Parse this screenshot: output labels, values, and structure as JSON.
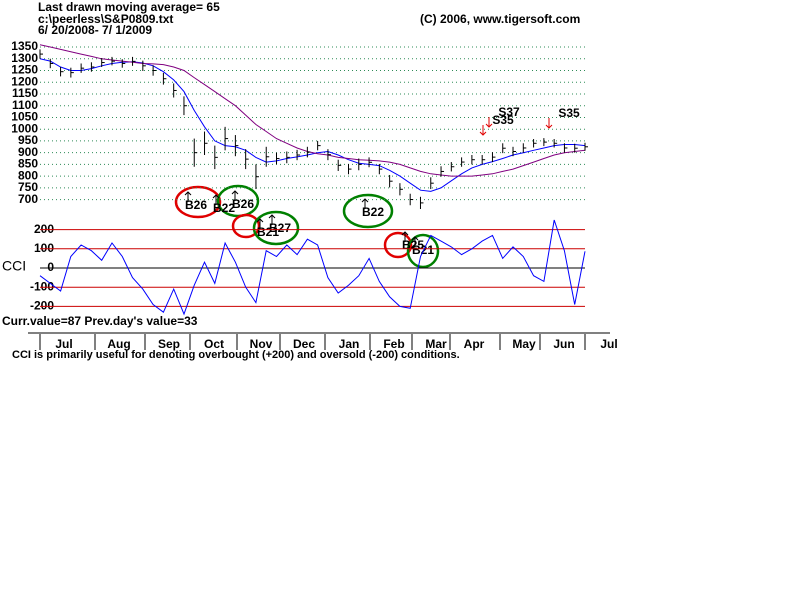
{
  "header": {
    "line1": "Last drawn moving average= 65",
    "line2": "c:\\peerless\\S&P0809.txt",
    "line3": "6/ 20/2008- 7/ 1/2009",
    "copyright": "(C) 2006, www.tigersoft.com"
  },
  "chart_data": [
    {
      "type": "ohlc",
      "high": [
        1340,
        1300,
        1265,
        1262,
        1280,
        1285,
        1303,
        1308,
        1298,
        1308,
        1292,
        1272,
        1240,
        1195,
        1140,
        960,
        990,
        930,
        1010,
        975,
        915,
        850,
        925,
        900,
        905,
        912,
        925,
        950,
        915,
        870,
        852,
        875,
        880,
        852,
        805,
        770,
        725,
        712,
        795,
        842,
        860,
        880,
        890,
        890,
        902,
        940,
        925,
        940,
        958,
        962,
        958,
        940,
        938,
        942
      ],
      "low": [
        1300,
        1260,
        1225,
        1220,
        1240,
        1245,
        1265,
        1272,
        1262,
        1270,
        1248,
        1228,
        1190,
        1135,
        1060,
        840,
        890,
        830,
        910,
        885,
        830,
        745,
        840,
        850,
        855,
        868,
        880,
        910,
        868,
        822,
        808,
        825,
        838,
        808,
        752,
        718,
        676,
        660,
        745,
        798,
        820,
        840,
        850,
        850,
        860,
        898,
        885,
        900,
        922,
        928,
        922,
        900,
        900,
        908
      ],
      "series": [
        {
          "color": "#0000ff",
          "values": [
            1300,
            1290,
            1265,
            1250,
            1250,
            1258,
            1270,
            1280,
            1285,
            1287,
            1282,
            1270,
            1245,
            1210,
            1160,
            1080,
            1010,
            950,
            930,
            925,
            910,
            880,
            860,
            865,
            875,
            882,
            890,
            900,
            905,
            890,
            870,
            855,
            850,
            845,
            825,
            800,
            770,
            740,
            735,
            750,
            780,
            810,
            835,
            850,
            862,
            875,
            890,
            900,
            910,
            920,
            930,
            935,
            935,
            930
          ]
        },
        {
          "color": "#800080",
          "values": [
            1360,
            1350,
            1340,
            1330,
            1320,
            1310,
            1300,
            1295,
            1290,
            1285,
            1280,
            1278,
            1275,
            1265,
            1250,
            1220,
            1190,
            1160,
            1130,
            1100,
            1060,
            1020,
            990,
            960,
            940,
            920,
            905,
            895,
            890,
            880,
            875,
            870,
            868,
            865,
            860,
            850,
            835,
            820,
            810,
            805,
            800,
            800,
            800,
            805,
            810,
            820,
            830,
            845,
            860,
            875,
            890,
            900,
            905,
            910
          ]
        }
      ],
      "ylim": [
        660,
        1380
      ],
      "yticks": [
        700,
        750,
        800,
        850,
        900,
        950,
        1000,
        1050,
        1100,
        1150,
        1200,
        1250,
        1300,
        1350
      ],
      "grid": true,
      "grid_color": "#2e8b57",
      "annotations": [
        "B26",
        "B22",
        "B26",
        "B27",
        "B21",
        "B22",
        "B25",
        "B21",
        "S37",
        "S35",
        "S35"
      ]
    },
    {
      "type": "line",
      "label": "CCI",
      "color": "#0000ff",
      "values": [
        -40,
        -80,
        -120,
        60,
        120,
        90,
        40,
        130,
        60,
        -50,
        -110,
        -190,
        -230,
        -110,
        -240,
        -90,
        30,
        -80,
        130,
        30,
        -100,
        -180,
        90,
        60,
        120,
        70,
        150,
        120,
        -50,
        -130,
        -90,
        -40,
        50,
        -70,
        -150,
        -200,
        -210,
        60,
        170,
        140,
        110,
        70,
        100,
        140,
        170,
        50,
        110,
        60,
        -40,
        -70,
        250,
        90,
        -190,
        87
      ],
      "ylim": [
        -250,
        250
      ],
      "yticks": [
        -200,
        -100,
        0,
        100,
        200
      ],
      "grid": true,
      "extreme_color": "#cc0000"
    }
  ],
  "x_axis": {
    "months": [
      "Jul",
      "Aug",
      "Sep",
      "Oct",
      "Nov",
      "Dec",
      "Jan",
      "Feb",
      "Mar",
      "Apr",
      "May",
      "Jun",
      "Jul"
    ]
  },
  "footer": {
    "values": "Curr.value=87 Prev.day's value=33",
    "note": "CCI is primarily useful for denoting overbought (+200) and oversold (-200) conditions."
  }
}
